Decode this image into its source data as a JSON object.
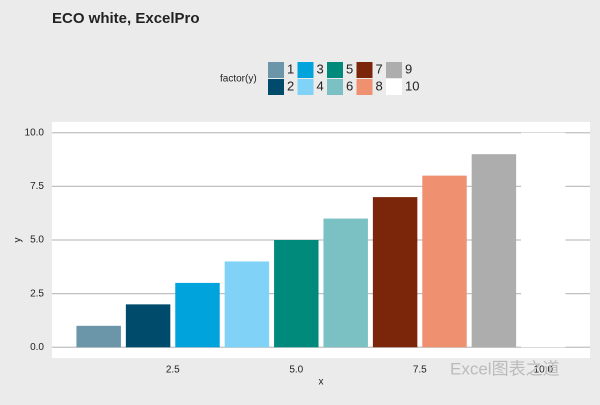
{
  "chart_data": {
    "type": "bar",
    "title": "ECO white, ExcelPro",
    "x_label": "x",
    "y_label": "y",
    "legend_title": "factor(y)",
    "x": [
      1,
      2,
      3,
      4,
      5,
      6,
      7,
      8,
      9,
      10
    ],
    "values": [
      1,
      2,
      3,
      4,
      5,
      6,
      7,
      8,
      9,
      10
    ],
    "legend_labels": [
      "1",
      "2",
      "3",
      "4",
      "5",
      "6",
      "7",
      "8",
      "9",
      "10"
    ],
    "colors": [
      "#6b95a8",
      "#004b6b",
      "#00a3dc",
      "#80d3f6",
      "#008a7b",
      "#7bc1c3",
      "#7b260b",
      "#ef9171",
      "#adadad",
      "#ffffff"
    ],
    "xlim": [
      0.055,
      10.945
    ],
    "ylim": [
      -0.5,
      10.5
    ],
    "xticks": [
      {
        "value": 2.5,
        "label": "2.5"
      },
      {
        "value": 5,
        "label": "5.0"
      },
      {
        "value": 7.5,
        "label": "7.5"
      },
      {
        "value": 10,
        "label": "10.0"
      }
    ],
    "yticks": [
      {
        "value": 0,
        "label": "0.0"
      },
      {
        "value": 2.5,
        "label": "2.5"
      },
      {
        "value": 5,
        "label": "5.0"
      },
      {
        "value": 7.5,
        "label": "7.5"
      },
      {
        "value": 10,
        "label": "10.0"
      }
    ],
    "grid": true,
    "legend_position": "top",
    "watermark": "Excel图表之道"
  }
}
